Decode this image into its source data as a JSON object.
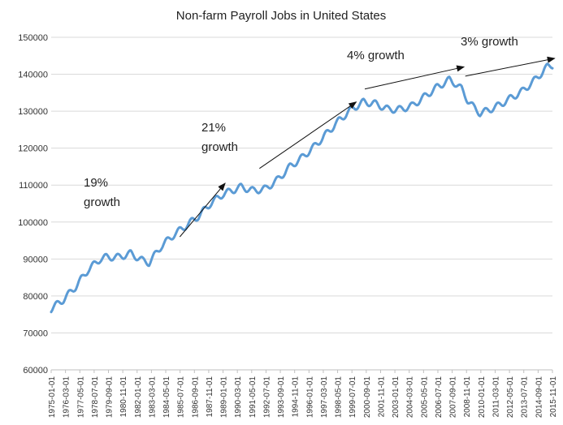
{
  "chart_data": {
    "type": "line",
    "title": "Non-farm Payroll Jobs in United States",
    "xlabel": "",
    "ylabel": "",
    "ylim": [
      60000,
      150000
    ],
    "yticks": [
      60000,
      70000,
      80000,
      90000,
      100000,
      110000,
      120000,
      130000,
      140000,
      150000
    ],
    "ytick_labels": [
      "60000",
      "70000",
      "80000",
      "90000",
      "100000",
      "110000",
      "120000",
      "130000",
      "140000",
      "150000"
    ],
    "x_start": "1975-01-01",
    "x_end": "2015-12-01",
    "xtick_labels": [
      "1975-01-01",
      "1976-03-01",
      "1977-05-01",
      "1978-07-01",
      "1979-09-01",
      "1980-11-01",
      "1982-01-01",
      "1983-03-01",
      "1984-05-01",
      "1985-07-01",
      "1986-09-01",
      "1987-11-01",
      "1989-01-01",
      "1990-03-01",
      "1991-05-01",
      "1992-07-01",
      "1993-09-01",
      "1994-11-01",
      "1996-01-01",
      "1997-03-01",
      "1998-05-01",
      "1999-07-01",
      "2000-09-01",
      "2001-11-01",
      "2003-01-01",
      "2004-03-01",
      "2005-05-01",
      "2006-07-01",
      "2007-09-01",
      "2008-11-01",
      "2010-01-01",
      "2011-03-01",
      "2012-05-01",
      "2013-07-01",
      "2014-09-01",
      "2015-11-01"
    ],
    "grid": true,
    "legend": "none",
    "seasonal_amplitude": 900,
    "series": [
      {
        "name": "Non-farm Payroll Jobs",
        "color": "#5b9bd5",
        "x": [
          1975.0,
          1976.0,
          1977.0,
          1978.0,
          1979.0,
          1979.5,
          1980.5,
          1981.5,
          1982.5,
          1983.0,
          1984.0,
          1985.0,
          1986.0,
          1987.0,
          1988.0,
          1989.0,
          1990.5,
          1991.5,
          1992.5,
          1993.5,
          1994.5,
          1995.5,
          1996.5,
          1997.5,
          1998.5,
          1999.5,
          2000.5,
          2001.5,
          2002.5,
          2003.5,
          2004.5,
          2005.5,
          2006.5,
          2007.5,
          2008.0,
          2008.5,
          2009.0,
          2009.5,
          2010.0,
          2010.5,
          2011.5,
          2012.5,
          2013.5,
          2014.5,
          2015.5,
          2015.9
        ],
        "values": [
          76500,
          79000,
          82500,
          87000,
          90000,
          90500,
          90500,
          91500,
          89500,
          89000,
          93500,
          96500,
          99000,
          101500,
          105000,
          107500,
          109500,
          108500,
          109000,
          111500,
          115000,
          117500,
          120500,
          124000,
          127500,
          130500,
          132500,
          132000,
          130500,
          130500,
          131500,
          134000,
          136500,
          138500,
          137500,
          136000,
          133000,
          131000,
          129500,
          130000,
          131500,
          133500,
          135500,
          138500,
          142000,
          142500
        ]
      }
    ],
    "annotations": [
      {
        "id": "growth-19",
        "lines": [
          "19%",
          "growth"
        ],
        "from": [
          1985.5,
          96000
        ],
        "to": [
          1989.2,
          110500
        ]
      },
      {
        "id": "growth-21",
        "lines": [
          "21%",
          "growth"
        ],
        "from": [
          1992.0,
          114500
        ],
        "to": [
          1999.9,
          132500
        ]
      },
      {
        "id": "growth-4",
        "lines": [
          "4% growth"
        ],
        "from": [
          2000.6,
          136000
        ],
        "to": [
          2008.7,
          142000
        ]
      },
      {
        "id": "growth-3",
        "lines": [
          "3% growth"
        ],
        "from": [
          2008.8,
          139500
        ],
        "to": [
          2016.1,
          144300
        ]
      }
    ]
  }
}
